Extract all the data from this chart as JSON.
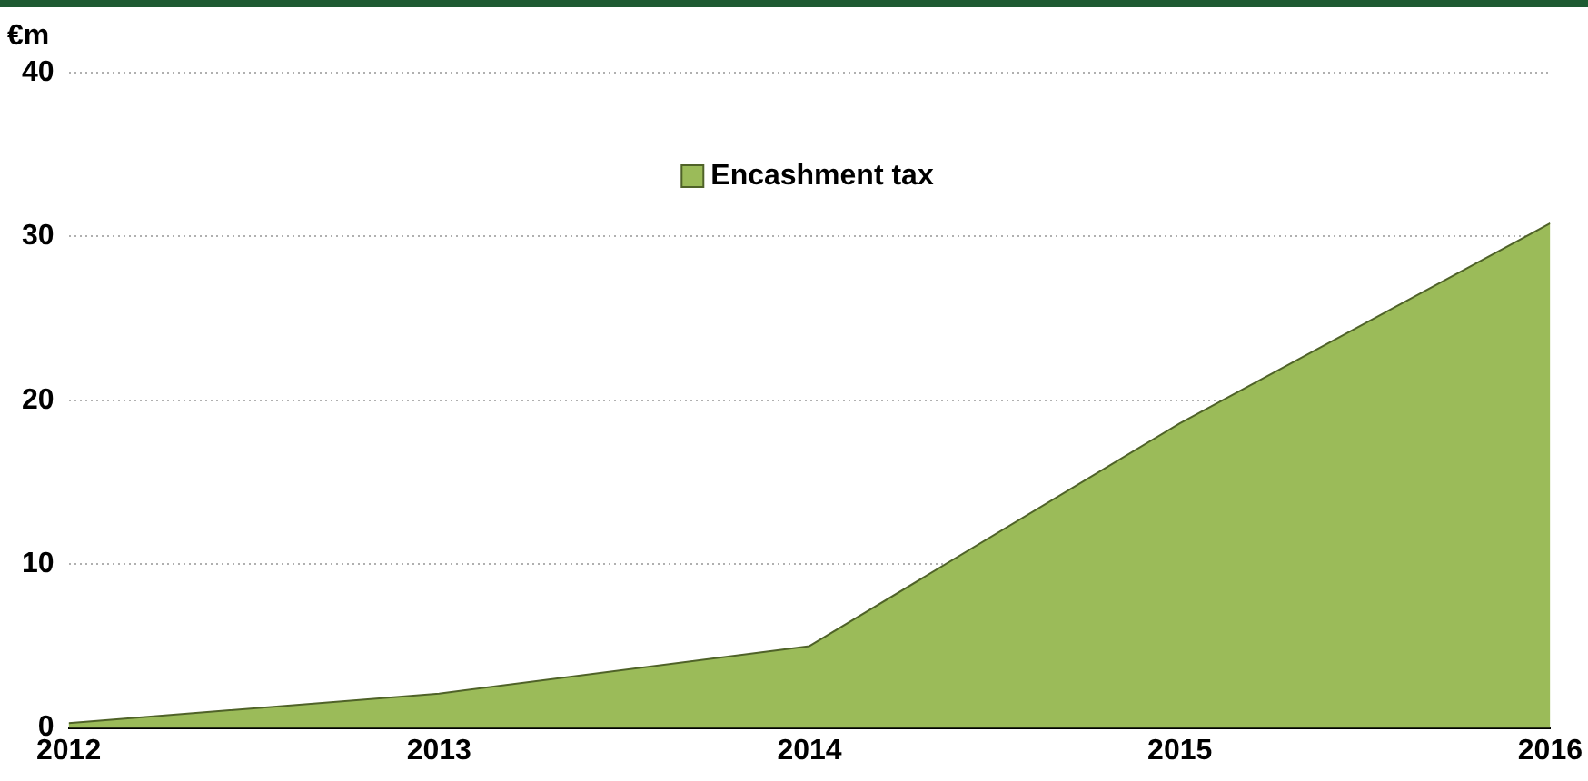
{
  "chart_data": {
    "type": "area",
    "ylabel": "€m",
    "x": [
      2012,
      2013,
      2014,
      2015,
      2016
    ],
    "xlim": [
      2012,
      2016
    ],
    "xticks": [
      2012,
      2013,
      2014,
      2015,
      2016
    ],
    "ylim": [
      0,
      40
    ],
    "yticks": [
      0,
      10,
      20,
      30,
      40
    ],
    "grid": "y",
    "legend": "top",
    "series": [
      {
        "name": "Encashment tax",
        "color": "#9bbb59",
        "values": [
          0.3,
          2.1,
          5.0,
          18.6,
          30.8
        ]
      }
    ]
  }
}
